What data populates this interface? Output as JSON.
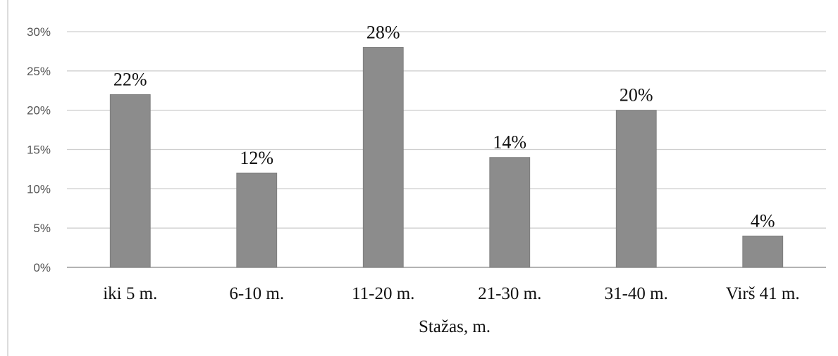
{
  "chart_data": {
    "type": "bar",
    "categories": [
      "iki 5 m.",
      "6-10 m.",
      "11-20 m.",
      "21-30 m.",
      "31-40 m.",
      "Virš 41 m."
    ],
    "values": [
      22,
      12,
      28,
      14,
      20,
      4
    ],
    "data_labels": [
      "22%",
      "12%",
      "28%",
      "14%",
      "20%",
      "4%"
    ],
    "xlabel": "Stažas, m.",
    "ylabel": "",
    "ylim": [
      0,
      30
    ],
    "y_ticks": [
      0,
      5,
      10,
      15,
      20,
      25,
      30
    ],
    "y_tick_labels": [
      "0%",
      "5%",
      "10%",
      "15%",
      "20%",
      "25%",
      "30%"
    ],
    "grid": true,
    "legend": "none",
    "colors": {
      "bar": "#8c8c8c",
      "grid": "#cfcfcf",
      "text": "#111111",
      "tick_text": "#555555"
    }
  }
}
